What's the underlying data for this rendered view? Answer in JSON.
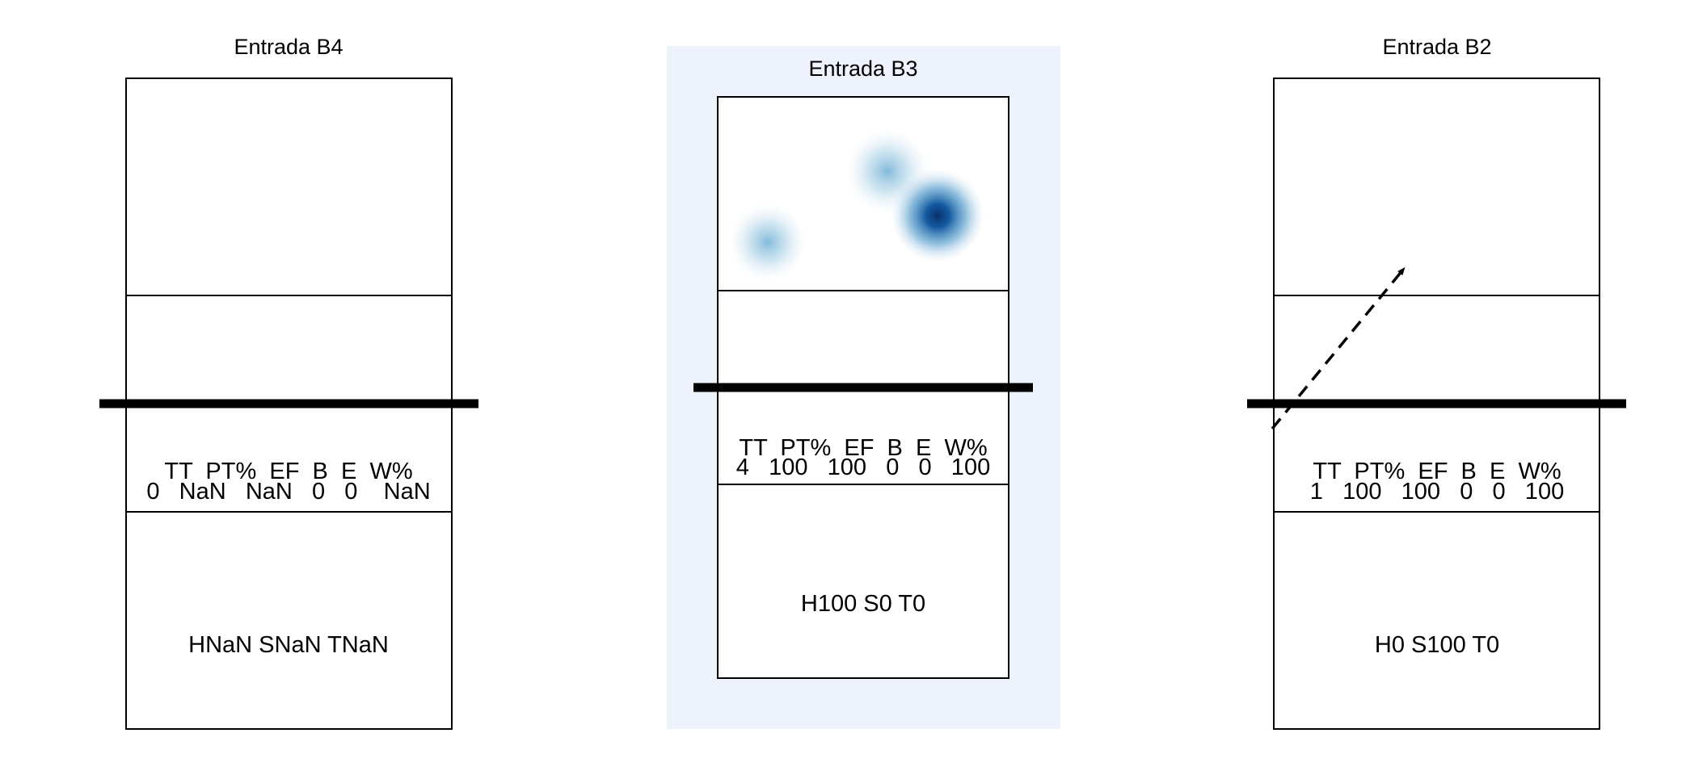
{
  "panels": [
    {
      "title": "Entrada B4",
      "stats_header": "TT  PT%  EF  B  E  W%",
      "stats_values": "0   NaN   NaN   0   0    NaN",
      "hst": "HNaN SNaN TNaN",
      "highlighted": false
    },
    {
      "title": "Entrada B3",
      "stats_header": "TT  PT%  EF  B  E  W%",
      "stats_values": "4   100   100   0   0   100",
      "hst": "H100 S0 T0",
      "highlighted": true
    },
    {
      "title": "Entrada B2",
      "stats_header": "TT  PT%  EF  B  E  W%",
      "stats_values": "1   100   100   0   0   100",
      "hst": "H0 S100 T0",
      "highlighted": false
    }
  ],
  "colors": {
    "highlight_background": "#edf2fd",
    "heat_light": "#9ecae1",
    "heat_dark": "#08519c"
  }
}
